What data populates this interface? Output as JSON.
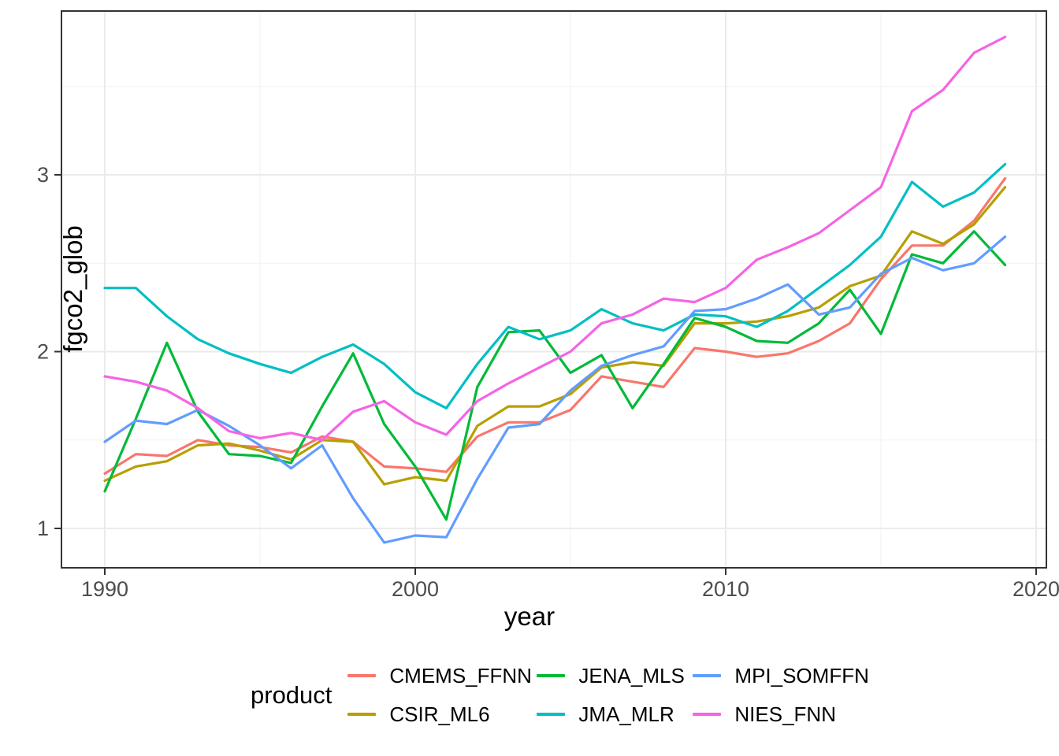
{
  "figure": {
    "background": "#FFFFFF",
    "panel_border_color": "#333333",
    "grid_major_color": "#EBEBEB",
    "grid_minor_color": "#F2F2F2",
    "tick_color": "#333333",
    "tick_label_color": "#4D4D4D"
  },
  "x_axis": {
    "title": "year",
    "tick_labels": [
      "1990",
      "2000",
      "2010",
      "2020"
    ],
    "tick_values": [
      1990,
      2000,
      2010,
      2020
    ],
    "minor_values": [
      1995,
      2005,
      2015
    ]
  },
  "y_axis": {
    "title": "fgco2_glob",
    "tick_labels": [
      "1",
      "2",
      "3"
    ],
    "tick_values": [
      1,
      2,
      3
    ],
    "minor_values": [
      1.5,
      2.5,
      3.5
    ]
  },
  "legend": {
    "title": "product",
    "items": [
      {
        "label": "CMEMS_FFNN",
        "color": "#F8766D"
      },
      {
        "label": "CSIR_ML6",
        "color": "#B79F00"
      },
      {
        "label": "JENA_MLS",
        "color": "#00BA38"
      },
      {
        "label": "JMA_MLR",
        "color": "#00BFC4"
      },
      {
        "label": "MPI_SOMFFN",
        "color": "#619CFF"
      },
      {
        "label": "NIES_FNN",
        "color": "#F564E3"
      }
    ]
  },
  "chart_data": {
    "type": "line",
    "title": "",
    "xlabel": "year",
    "ylabel": "fgco2_glob",
    "x": [
      1990,
      1991,
      1992,
      1993,
      1994,
      1995,
      1996,
      1997,
      1998,
      1999,
      2000,
      2001,
      2002,
      2003,
      2004,
      2005,
      2006,
      2007,
      2008,
      2009,
      2010,
      2011,
      2012,
      2013,
      2014,
      2015,
      2016,
      2017,
      2018,
      2019
    ],
    "xlim": [
      1988.6,
      2020.4
    ],
    "ylim": [
      0.78,
      3.93
    ],
    "grid": "on",
    "legend_position": "bottom",
    "series": [
      {
        "name": "CMEMS_FFNN",
        "color": "#F8766D",
        "values": [
          1.31,
          1.42,
          1.41,
          1.5,
          1.47,
          1.46,
          1.43,
          1.52,
          1.49,
          1.35,
          1.34,
          1.32,
          1.52,
          1.6,
          1.6,
          1.67,
          1.86,
          1.83,
          1.8,
          2.02,
          2.0,
          1.97,
          1.99,
          2.06,
          2.16,
          2.41,
          2.6,
          2.6,
          2.74,
          2.98
        ]
      },
      {
        "name": "CSIR_ML6",
        "color": "#B79F00",
        "values": [
          1.27,
          1.35,
          1.38,
          1.47,
          1.48,
          1.44,
          1.39,
          1.5,
          1.49,
          1.25,
          1.29,
          1.27,
          1.58,
          1.69,
          1.69,
          1.76,
          1.91,
          1.94,
          1.92,
          2.16,
          2.16,
          2.17,
          2.2,
          2.25,
          2.37,
          2.43,
          2.68,
          2.61,
          2.72,
          2.93
        ]
      },
      {
        "name": "JENA_MLS",
        "color": "#00BA38",
        "values": [
          1.21,
          1.62,
          2.05,
          1.66,
          1.42,
          1.41,
          1.37,
          1.69,
          1.99,
          1.59,
          1.35,
          1.05,
          1.8,
          2.11,
          2.12,
          1.88,
          1.98,
          1.68,
          1.93,
          2.19,
          2.14,
          2.06,
          2.05,
          2.16,
          2.35,
          2.1,
          2.55,
          2.5,
          2.68,
          2.49
        ]
      },
      {
        "name": "JMA_MLR",
        "color": "#00BFC4",
        "values": [
          2.36,
          2.36,
          2.2,
          2.07,
          1.99,
          1.93,
          1.88,
          1.97,
          2.04,
          1.93,
          1.77,
          1.68,
          1.93,
          2.14,
          2.07,
          2.12,
          2.24,
          2.16,
          2.12,
          2.21,
          2.2,
          2.14,
          2.23,
          2.36,
          2.49,
          2.65,
          2.96,
          2.82,
          2.9,
          3.06
        ]
      },
      {
        "name": "MPI_SOMFFN",
        "color": "#619CFF",
        "values": [
          1.49,
          1.61,
          1.59,
          1.67,
          1.58,
          1.47,
          1.34,
          1.47,
          1.17,
          0.92,
          0.96,
          0.95,
          1.28,
          1.57,
          1.59,
          1.78,
          1.92,
          1.98,
          2.03,
          2.23,
          2.24,
          2.3,
          2.38,
          2.21,
          2.25,
          2.44,
          2.53,
          2.46,
          2.5,
          2.65
        ]
      },
      {
        "name": "NIES_FNN",
        "color": "#F564E3",
        "values": [
          1.86,
          1.83,
          1.78,
          1.68,
          1.55,
          1.51,
          1.54,
          1.5,
          1.66,
          1.72,
          1.6,
          1.53,
          1.72,
          1.82,
          1.91,
          2.0,
          2.16,
          2.21,
          2.3,
          2.28,
          2.36,
          2.52,
          2.59,
          2.67,
          2.8,
          2.93,
          3.36,
          3.48,
          3.69,
          3.78
        ]
      }
    ]
  }
}
